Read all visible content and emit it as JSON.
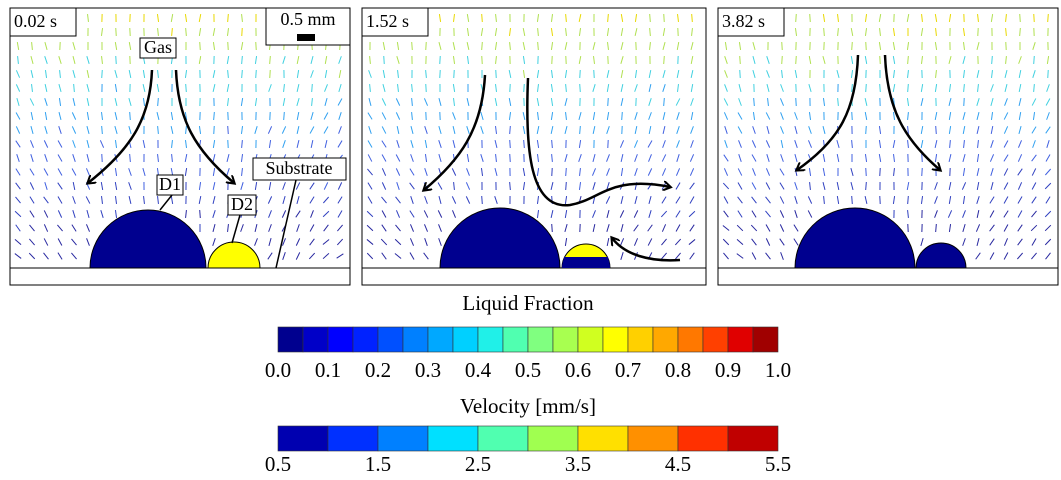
{
  "panels": [
    {
      "time": "0.02 s"
    },
    {
      "time": "1.52 s"
    },
    {
      "time": "3.82 s"
    }
  ],
  "annotations": {
    "scale": "0.5 mm",
    "gas": "Gas",
    "d1": "D1",
    "d2": "D2",
    "substrate": "Substrate"
  },
  "colorbars": [
    {
      "title": "Liquid Fraction",
      "ticks": [
        "0.0",
        "0.1",
        "0.2",
        "0.3",
        "0.4",
        "0.5",
        "0.6",
        "0.7",
        "0.8",
        "0.9",
        "1.0"
      ],
      "colors": [
        "#00008f",
        "#0000c8",
        "#0000ff",
        "#0022ff",
        "#0050ff",
        "#0080ff",
        "#00a8ff",
        "#00d0ff",
        "#20f0e8",
        "#50ffb0",
        "#80ff80",
        "#a8ff50",
        "#d0ff20",
        "#ffff00",
        "#ffd000",
        "#ffa800",
        "#ff7800",
        "#ff4000",
        "#e00000",
        "#a00000"
      ]
    },
    {
      "title": "Velocity [mm/s]",
      "ticks": [
        "0.5",
        "1.5",
        "2.5",
        "3.5",
        "4.5",
        "5.5"
      ],
      "colors": [
        "#0000b0",
        "#0030ff",
        "#0080ff",
        "#00e0ff",
        "#50ffb0",
        "#a0ff50",
        "#ffe000",
        "#ff9000",
        "#ff3000",
        "#c00000"
      ]
    }
  ]
}
